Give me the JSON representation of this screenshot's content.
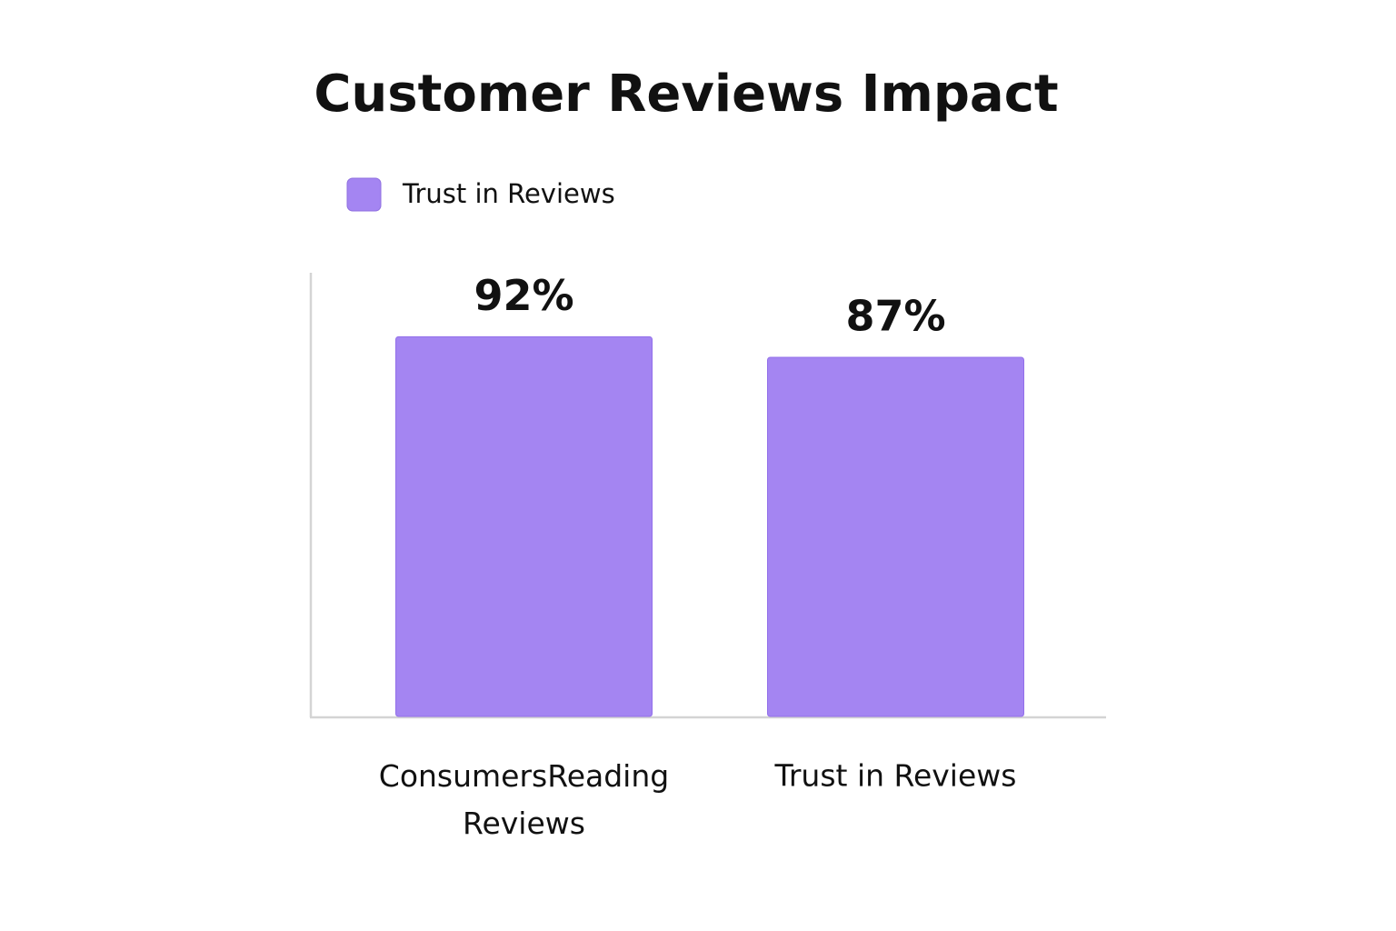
{
  "chart_data": {
    "type": "bar",
    "title": "Customer Reviews Impact",
    "categories": [
      "ConsumersReading Reviews",
      "Trust in Reviews"
    ],
    "series": [
      {
        "name": "Trust in Reviews",
        "color": "#a485f2",
        "values": [
          92,
          87
        ],
        "value_labels": [
          "92%",
          "87%"
        ]
      }
    ],
    "ylim": [
      0,
      100
    ],
    "legend": "top-left"
  }
}
